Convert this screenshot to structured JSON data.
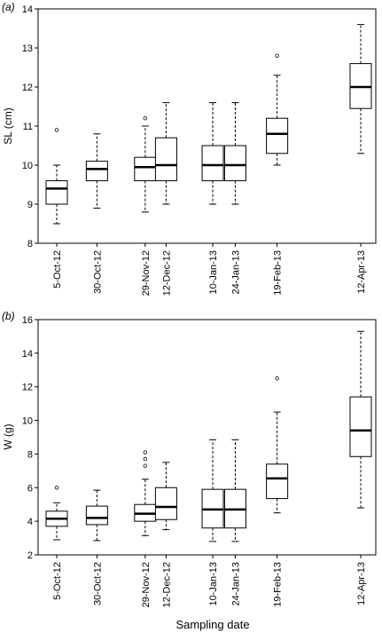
{
  "chart_data": [
    {
      "type": "box",
      "panel_label": "(a)",
      "ylabel": "SL (cm)",
      "ylim": [
        8,
        14
      ],
      "yticks": [
        8,
        9,
        10,
        11,
        12,
        13,
        14
      ],
      "categories": [
        "5-Oct-12",
        "30-Oct-12",
        "29-Nov-12",
        "12-Dec-12",
        "10-Jan-13",
        "24-Jan-13",
        "19-Feb-13",
        "12-Apr-13"
      ],
      "days": [
        0,
        25,
        55,
        68,
        97,
        111,
        137,
        189
      ],
      "boxes": [
        {
          "min": 8.5,
          "q1": 9.0,
          "median": 9.4,
          "q3": 9.6,
          "max": 10.0,
          "outliers": [
            10.9
          ]
        },
        {
          "min": 8.9,
          "q1": 9.6,
          "median": 9.9,
          "q3": 10.1,
          "max": 10.8,
          "outliers": []
        },
        {
          "min": 8.8,
          "q1": 9.6,
          "median": 9.95,
          "q3": 10.2,
          "max": 11.0,
          "outliers": [
            11.2
          ]
        },
        {
          "min": 9.0,
          "q1": 9.6,
          "median": 10.0,
          "q3": 10.7,
          "max": 11.6,
          "outliers": []
        },
        {
          "min": 9.0,
          "q1": 9.6,
          "median": 10.0,
          "q3": 10.5,
          "max": 11.6,
          "outliers": []
        },
        {
          "min": 9.0,
          "q1": 9.6,
          "median": 10.0,
          "q3": 10.5,
          "max": 11.6,
          "outliers": []
        },
        {
          "min": 10.0,
          "q1": 10.3,
          "median": 10.8,
          "q3": 11.2,
          "max": 12.3,
          "outliers": [
            12.8
          ]
        },
        {
          "min": 10.3,
          "q1": 11.45,
          "median": 12.0,
          "q3": 12.6,
          "max": 13.6,
          "outliers": []
        }
      ]
    },
    {
      "type": "box",
      "panel_label": "(b)",
      "ylabel": "W (g)",
      "xlabel": "Sampling date",
      "ylim": [
        2,
        16
      ],
      "yticks": [
        2,
        4,
        6,
        8,
        10,
        12,
        14,
        16
      ],
      "categories": [
        "5-Oct-12",
        "30-Oct-12",
        "29-Nov-12",
        "12-Dec-12",
        "10-Jan-13",
        "24-Jan-13",
        "19-Feb-13",
        "12-Apr-13"
      ],
      "days": [
        0,
        25,
        55,
        68,
        97,
        111,
        137,
        189
      ],
      "boxes": [
        {
          "min": 2.9,
          "q1": 3.7,
          "median": 4.15,
          "q3": 4.6,
          "max": 5.1,
          "outliers": [
            6.0
          ]
        },
        {
          "min": 2.85,
          "q1": 3.8,
          "median": 4.2,
          "q3": 4.9,
          "max": 5.85,
          "outliers": []
        },
        {
          "min": 3.15,
          "q1": 4.0,
          "median": 4.45,
          "q3": 5.0,
          "max": 6.5,
          "outliers": [
            7.3,
            7.7,
            8.1
          ]
        },
        {
          "min": 3.5,
          "q1": 4.1,
          "median": 4.85,
          "q3": 6.0,
          "max": 7.5,
          "outliers": []
        },
        {
          "min": 2.8,
          "q1": 3.6,
          "median": 4.7,
          "q3": 5.9,
          "max": 8.85,
          "outliers": []
        },
        {
          "min": 2.8,
          "q1": 3.6,
          "median": 4.7,
          "q3": 5.9,
          "max": 8.85,
          "outliers": []
        },
        {
          "min": 4.5,
          "q1": 5.35,
          "median": 6.55,
          "q3": 7.4,
          "max": 10.5,
          "outliers": [
            12.5
          ]
        },
        {
          "min": 4.8,
          "q1": 7.85,
          "median": 9.4,
          "q3": 11.4,
          "max": 15.3,
          "outliers": []
        }
      ]
    }
  ]
}
